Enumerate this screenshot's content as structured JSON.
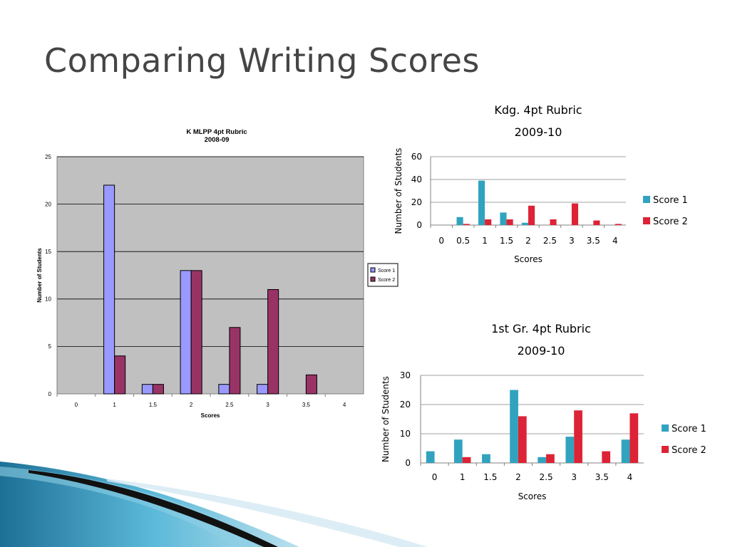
{
  "slide": {
    "title": "Comparing Writing Scores"
  },
  "colors": {
    "chart1_score1": "#9999ff",
    "chart1_score2": "#993366",
    "chart1_plot_bg": "#c0c0c0",
    "teal": "#31a3bf",
    "red": "#dd2336",
    "title_text": "#454545"
  },
  "chart_data": [
    {
      "type": "bar",
      "title": "K MLPP 4pt Rubric",
      "subtitle": "2008-09",
      "xlabel": "Scores",
      "ylabel": "Number of Students",
      "categories": [
        "0",
        "1",
        "1.5",
        "2",
        "2.5",
        "3",
        "3.5",
        "4"
      ],
      "series": [
        {
          "name": "Score 1",
          "values": [
            0,
            22,
            1,
            13,
            1,
            1,
            0,
            0
          ]
        },
        {
          "name": "Score 2",
          "values": [
            0,
            4,
            1,
            13,
            7,
            11,
            2,
            0
          ]
        }
      ],
      "ylim": [
        0,
        25
      ],
      "yticks": [
        "0",
        "5",
        "10",
        "15",
        "20",
        "25"
      ],
      "grid": true,
      "legend": "right"
    },
    {
      "type": "bar",
      "title": "Kdg. 4pt Rubric",
      "subtitle": "2009-10",
      "xlabel": "Scores",
      "ylabel": "Number of Students",
      "categories": [
        "0",
        "0.5",
        "1",
        "1.5",
        "2",
        "2.5",
        "3",
        "3.5",
        "4"
      ],
      "series": [
        {
          "name": "Score 1",
          "values": [
            0,
            7,
            39,
            11,
            2,
            0,
            0,
            0,
            0
          ]
        },
        {
          "name": "Score 2",
          "values": [
            0,
            1,
            5,
            5,
            17,
            5,
            19,
            4,
            1
          ]
        }
      ],
      "ylim": [
        0,
        60
      ],
      "yticks": [
        "0",
        "20",
        "40",
        "60"
      ],
      "grid": true,
      "legend": "right"
    },
    {
      "type": "bar",
      "title": "1st Gr. 4pt Rubric",
      "subtitle": "2009-10",
      "xlabel": "Scores",
      "ylabel": "Number of Students",
      "categories": [
        "0",
        "1",
        "1.5",
        "2",
        "2.5",
        "3",
        "3.5",
        "4"
      ],
      "series": [
        {
          "name": "Score 1",
          "values": [
            4,
            8,
            3,
            25,
            2,
            9,
            0,
            8
          ]
        },
        {
          "name": "Score 2",
          "values": [
            0,
            2,
            0,
            16,
            3,
            18,
            4,
            17
          ]
        }
      ],
      "ylim": [
        0,
        30
      ],
      "yticks": [
        "0",
        "10",
        "20",
        "30"
      ],
      "grid": true,
      "legend": "right"
    }
  ]
}
